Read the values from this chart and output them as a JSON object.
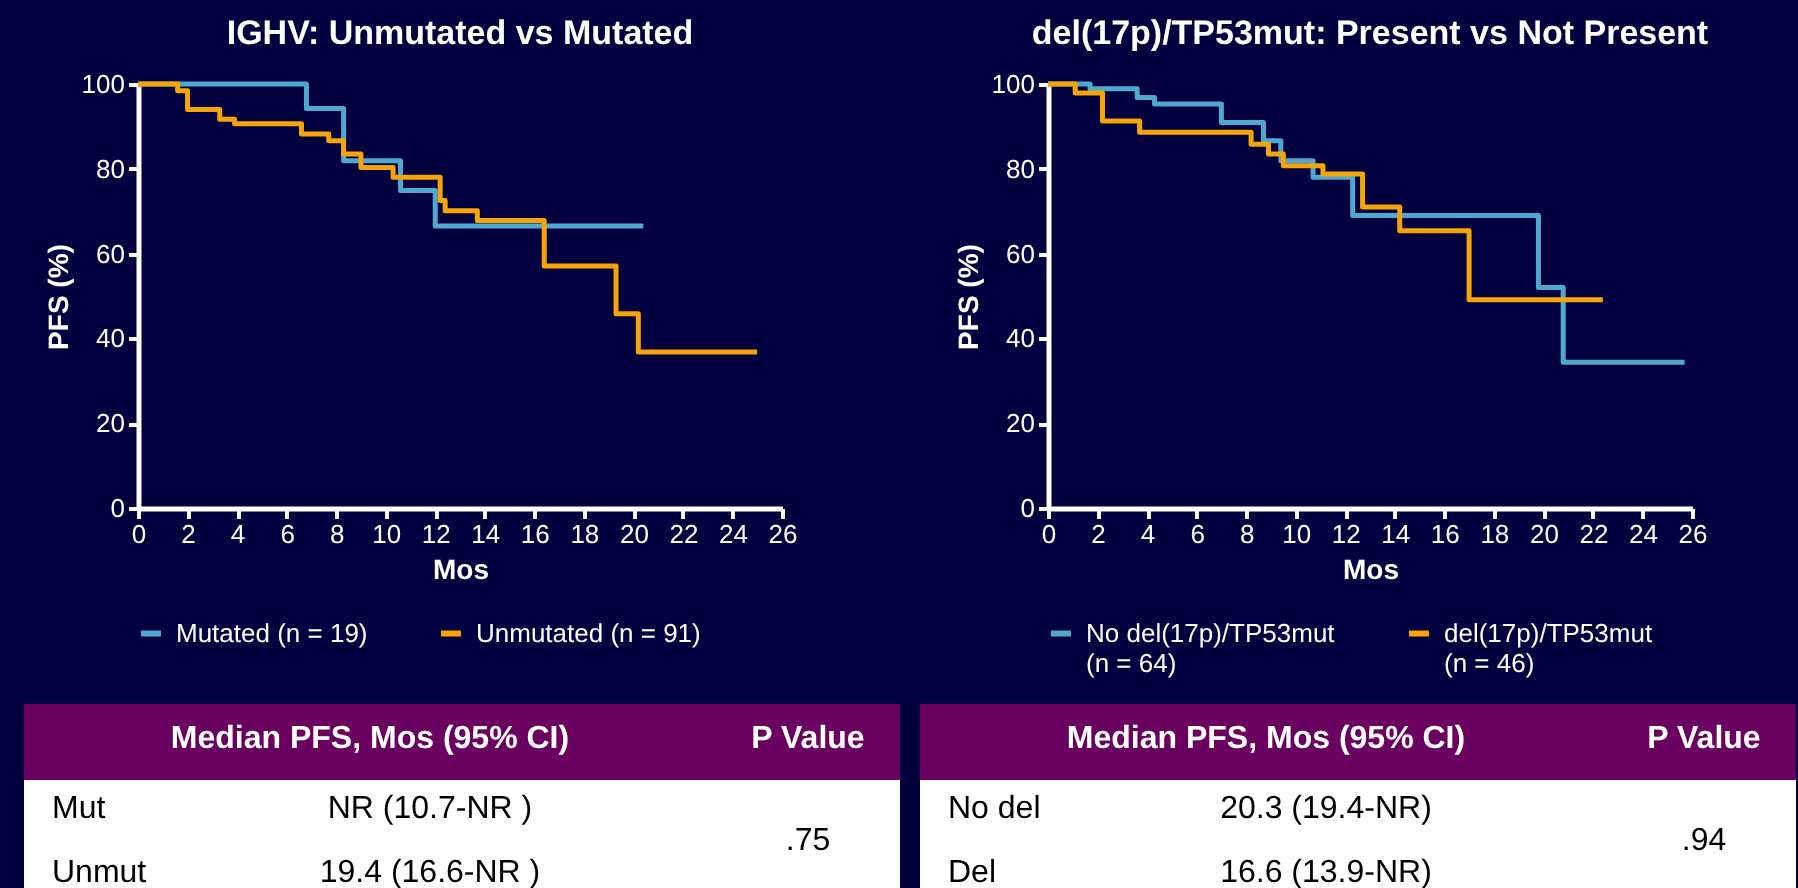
{
  "chart_data": [
    {
      "type": "step",
      "title": "IGHV: Unmutated vs Mutated",
      "xlabel": "Mos",
      "ylabel": "PFS (%)",
      "xlim": [
        0,
        26
      ],
      "xticks": [
        0,
        2,
        4,
        6,
        8,
        10,
        12,
        14,
        16,
        18,
        20,
        22,
        24,
        26
      ],
      "ylim": [
        0,
        100
      ],
      "yticks": [
        0,
        20,
        40,
        60,
        80,
        100
      ],
      "grid": false,
      "legend": "bottom",
      "series": [
        {
          "name": "Mutated (n = 19)",
          "color": "#4fa8d0",
          "x": [
            0,
            6.8,
            8.3,
            10.6,
            12.0,
            20.4
          ],
          "values": [
            100,
            94.2,
            81.9,
            74.9,
            66.5,
            66.5
          ]
        },
        {
          "name": "Unmutated (n = 91)",
          "color": "#f5a50a",
          "x": [
            0,
            1.6,
            2.0,
            3.3,
            3.9,
            6.6,
            7.7,
            8.3,
            9.0,
            10.3,
            12.2,
            12.4,
            13.7,
            16.4,
            19.3,
            20.2,
            25.0
          ],
          "values": [
            100,
            98.4,
            94,
            91.7,
            90.6,
            88.2,
            86.6,
            83.5,
            80.3,
            78,
            72.5,
            70.1,
            67.8,
            57.1,
            45.8,
            36.8,
            36.8
          ]
        }
      ],
      "annotations": [
        "Median PFS, Mos (95% CI)",
        "P Value",
        "Mut",
        "NR (10.7-NR )",
        "Unmut",
        "19.4 (16.6-NR )",
        ".75"
      ]
    },
    {
      "type": "step",
      "title": "del(17p)/TP53mut: Present vs Not Present",
      "xlabel": "Mos",
      "ylabel": "PFS (%)",
      "xlim": [
        0,
        26
      ],
      "xticks": [
        0,
        2,
        4,
        6,
        8,
        10,
        12,
        14,
        16,
        18,
        20,
        22,
        24,
        26
      ],
      "ylim": [
        0,
        100
      ],
      "yticks": [
        0,
        20,
        40,
        60,
        80,
        100
      ],
      "grid": false,
      "legend": "bottom",
      "series": [
        {
          "name": "No del(17p)/TP53mut (n = 64)",
          "color": "#4fa8d0",
          "x": [
            0,
            1.7,
            3.6,
            4.3,
            7.0,
            8.7,
            9.4,
            10.7,
            12.3,
            19.8,
            20.8,
            25.7
          ],
          "values": [
            100,
            98.9,
            96.8,
            95.3,
            90.9,
            86.6,
            81.9,
            78,
            69,
            52,
            34.4,
            34.4
          ]
        },
        {
          "name": "del(17p)/TP53mut (n = 46)",
          "color": "#f5a50a",
          "x": [
            0,
            1.1,
            2.2,
            3.7,
            8.2,
            8.9,
            9.5,
            11.1,
            12.7,
            14.2,
            17.0,
            22.4
          ],
          "values": [
            100,
            97.9,
            91.3,
            88.6,
            85.8,
            83.5,
            80.7,
            78.8,
            71,
            65.4,
            49.1,
            49.1
          ]
        }
      ],
      "annotations": [
        "Median PFS, Mos (95% CI)",
        "P Value",
        "No del",
        "20.3 (19.4-NR)",
        "Del",
        "16.6 (13.9-NR)",
        ".94"
      ]
    }
  ]
}
